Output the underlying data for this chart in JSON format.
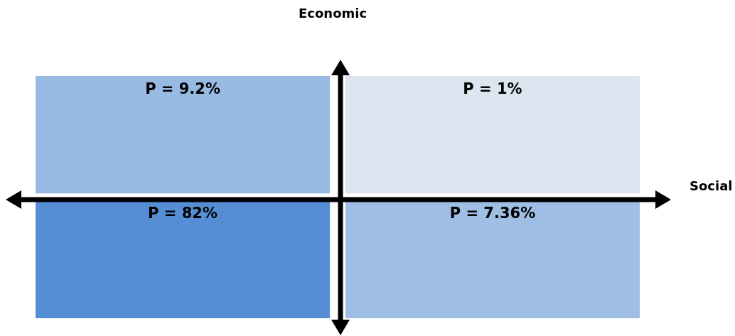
{
  "chart_data": {
    "type": "heatmap",
    "xlabel": "Social",
    "ylabel": "Economic",
    "categories": [
      null,
      null
    ],
    "y_categories": [
      null,
      null
    ],
    "cells": [
      [
        9.2,
        1
      ],
      [
        82,
        7.36
      ]
    ],
    "cell_labels": [
      [
        "P = 9.2%",
        "P = 1%"
      ],
      [
        "P = 82%",
        "P = 7.36%"
      ]
    ],
    "colors": [
      "#95b3d7",
      "#dce6f1",
      "#558ed5",
      "#c6d9f1"
    ]
  }
}
